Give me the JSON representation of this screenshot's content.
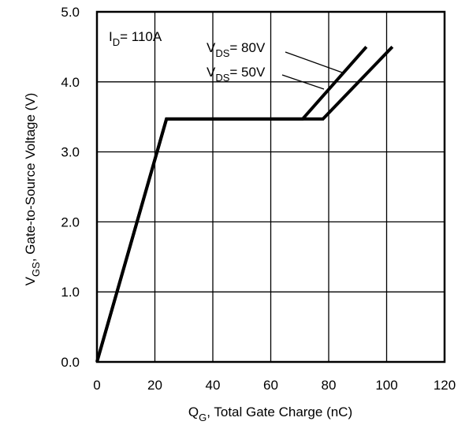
{
  "chart_data": {
    "type": "line",
    "title": "",
    "xlabel": {
      "main": "Q",
      "sub": "G",
      "rest": ",  Total Gate Charge (nC)"
    },
    "ylabel": {
      "main": "V",
      "sub": "GS",
      "rest": ", Gate-to-Source Voltage (V)"
    },
    "xlim": [
      0,
      120
    ],
    "ylim": [
      0,
      5
    ],
    "x_ticks": [
      0,
      20,
      40,
      60,
      80,
      100,
      120
    ],
    "x_tick_labels": [
      "0",
      "20",
      "40",
      "60",
      "80",
      "100",
      "120"
    ],
    "y_ticks": [
      0,
      1,
      2,
      3,
      4,
      5
    ],
    "y_tick_labels": [
      "0.0",
      "1.0",
      "2.0",
      "3.0",
      "4.0",
      "5.0"
    ],
    "grid": true,
    "series_color": "#000000",
    "series": [
      {
        "name": "VDS= 80V",
        "x": [
          0,
          24,
          71,
          93
        ],
        "y": [
          0,
          3.47,
          3.47,
          4.5
        ]
      },
      {
        "name": "VDS= 50V",
        "x": [
          0,
          24,
          78,
          102
        ],
        "y": [
          0,
          3.47,
          3.47,
          4.5
        ]
      }
    ],
    "annotations": {
      "id_label": {
        "main": "I",
        "sub": "D",
        "rest": "= 110A"
      },
      "vds80_label": {
        "main": "V",
        "sub": "DS",
        "rest": "= 80V"
      },
      "vds50_label": {
        "main": "V",
        "sub": "DS",
        "rest": "= 50V"
      }
    }
  }
}
